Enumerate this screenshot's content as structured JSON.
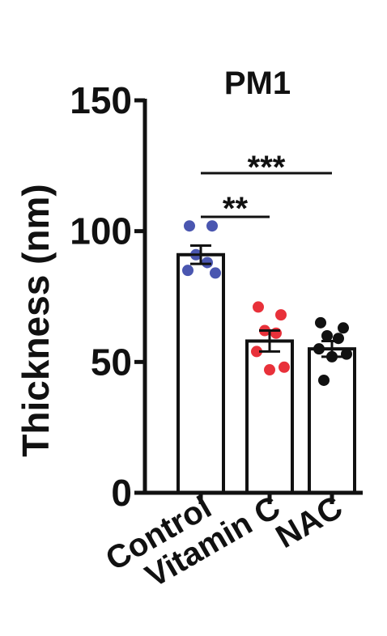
{
  "chart_data": {
    "type": "bar",
    "title": "PM1",
    "ylabel": "Thickness (nm)",
    "xlabel": "",
    "ylim": [
      0,
      150
    ],
    "yticks": [
      "0",
      "50",
      "100",
      "150"
    ],
    "categories": [
      "Control",
      "Vitamin C",
      "NAC"
    ],
    "values": [
      91,
      58,
      55
    ],
    "error": [
      3.5,
      4,
      3
    ],
    "bar_fill": "#ffffff",
    "bar_edge": "#111111",
    "point_colors": [
      "#4a56b0",
      "#e8313a",
      "#111111"
    ],
    "points": [
      [
        102,
        102,
        91,
        88,
        85,
        84
      ],
      [
        71,
        68,
        62,
        61,
        54,
        48,
        47
      ],
      [
        65,
        63,
        60,
        59,
        55,
        53,
        52,
        43
      ]
    ],
    "significance": [
      {
        "from": "Control",
        "to": "Vitamin C",
        "label": "**"
      },
      {
        "from": "Control",
        "to": "NAC",
        "label": "***"
      }
    ]
  }
}
